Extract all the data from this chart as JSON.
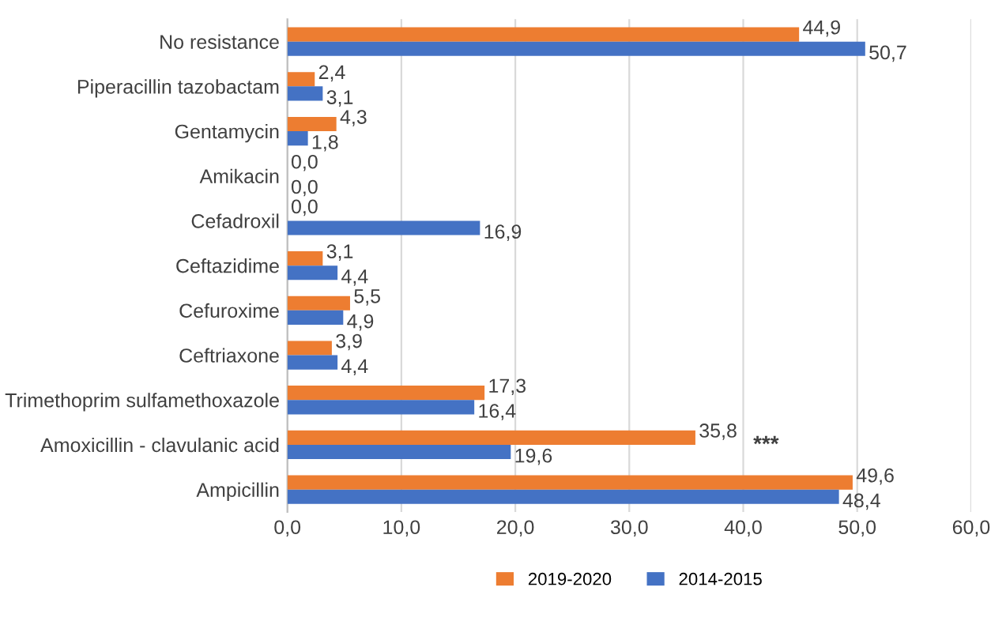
{
  "chart_data": {
    "type": "bar",
    "orientation": "horizontal",
    "categories": [
      "No resistance",
      "Piperacillin tazobactam",
      "Gentamycin",
      "Amikacin",
      "Cefadroxil",
      "Ceftazidime",
      "Cefuroxime",
      "Ceftriaxone",
      "Trimethoprim sulfamethoxazole",
      "Amoxicillin - clavulanic acid",
      "Ampicillin"
    ],
    "series": [
      {
        "name": "2019-2020",
        "color": "#ed7d31",
        "values": [
          44.9,
          2.4,
          4.3,
          0.0,
          0.0,
          3.1,
          5.5,
          3.9,
          17.3,
          35.8,
          49.6
        ],
        "value_labels": [
          "44,9",
          "2,4",
          "4,3",
          "0,0",
          "0,0",
          "3,1",
          "5,5",
          "3,9",
          "17,3",
          "35,8",
          "49,6"
        ]
      },
      {
        "name": "2014-2015",
        "color": "#4472c4",
        "values": [
          50.7,
          3.1,
          1.8,
          0.0,
          16.9,
          4.4,
          4.9,
          4.4,
          16.4,
          19.6,
          48.4
        ],
        "value_labels": [
          "50,7",
          "3,1",
          "1,8",
          "0,0",
          "16,9",
          "4,4",
          "4,9",
          "4,4",
          "16,4",
          "19,6",
          "48,4"
        ]
      }
    ],
    "xlim": [
      0,
      60
    ],
    "xticks": [
      {
        "value": 0,
        "label": "0,0"
      },
      {
        "value": 10,
        "label": "10,0"
      },
      {
        "value": 20,
        "label": "20,0"
      },
      {
        "value": 30,
        "label": "30,0"
      },
      {
        "value": 40,
        "label": "40,0"
      },
      {
        "value": 50,
        "label": "50,0"
      },
      {
        "value": 60,
        "label": "60,0"
      }
    ],
    "grid": "x",
    "legend": "bottom",
    "annotations": [
      "***"
    ]
  }
}
